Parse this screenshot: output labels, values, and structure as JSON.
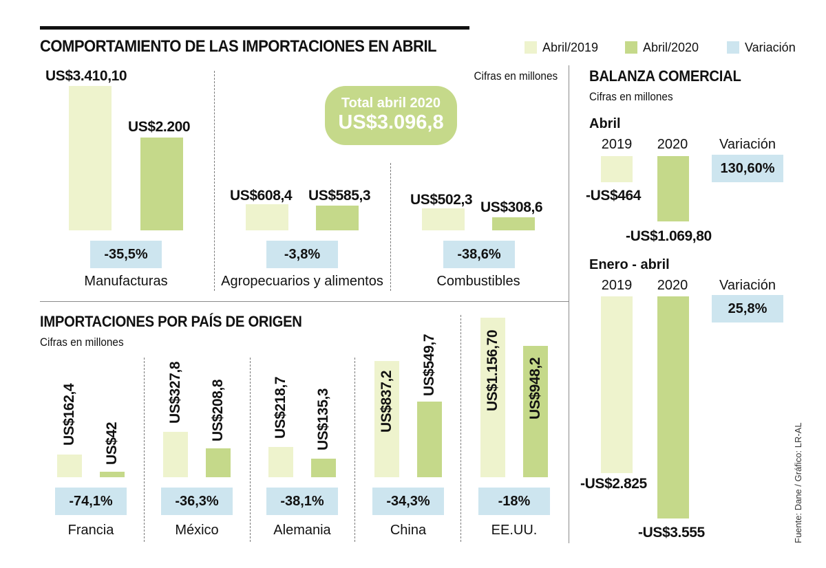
{
  "title": "COMPORTAMIENTO DE LAS IMPORTACIONES EN ABRIL",
  "legend": [
    {
      "label": "Abril/2019",
      "color": "#eef3cd"
    },
    {
      "label": "Abril/2020",
      "color": "#c5d98a"
    },
    {
      "label": "Variación",
      "color": "#cde5ef"
    }
  ],
  "units_note": "Cifras en millones",
  "total": {
    "line1": "Total abril 2020",
    "line2": "US$3.096,8"
  },
  "source": "Fuente: Dane / Gráfico: LR-AL",
  "chart_data": [
    {
      "type": "bar",
      "title": "COMPORTAMIENTO DE LAS IMPORTACIONES EN ABRIL",
      "categories": [
        "Manufacturas",
        "Agropecuarios y alimentos",
        "Combustibles"
      ],
      "series": [
        {
          "name": "Abril/2019",
          "values": [
            3410.1,
            608.4,
            502.3
          ],
          "labels": [
            "US$3.410,10",
            "US$608,4",
            "US$502,3"
          ]
        },
        {
          "name": "Abril/2020",
          "values": [
            2200,
            585.3,
            308.6
          ],
          "labels": [
            "US$2.200",
            "US$585,3",
            "US$308,6"
          ]
        }
      ],
      "variation": [
        "-35,5%",
        "-3,8%",
        "-38,6%"
      ]
    },
    {
      "type": "bar",
      "title": "IMPORTACIONES POR PAÍS DE ORIGEN",
      "subtitle": "Cifras en millones",
      "categories": [
        "Francia",
        "México",
        "Alemania",
        "China",
        "EE.UU."
      ],
      "series": [
        {
          "name": "Abril/2019",
          "values": [
            162.4,
            327.8,
            218.7,
            837.2,
            1156.7
          ],
          "labels": [
            "US$162,4",
            "US$327,8",
            "US$218,7",
            "US$837,2",
            "US$1.156,70"
          ]
        },
        {
          "name": "Abril/2020",
          "values": [
            42,
            208.8,
            135.3,
            549.7,
            948.2
          ],
          "labels": [
            "US$42",
            "US$208,8",
            "US$135,3",
            "US$549,7",
            "US$948,2"
          ]
        }
      ],
      "variation": [
        "-74,1%",
        "-36,3%",
        "-38,1%",
        "-34,3%",
        "-18%"
      ]
    },
    {
      "type": "bar",
      "title": "BALANZA COMERCIAL",
      "subtitle": "Cifras en millones",
      "groups": [
        {
          "name": "Abril",
          "categories": [
            "2019",
            "2020"
          ],
          "values": [
            -464,
            -1069.8
          ],
          "labels": [
            "-US$464",
            "-US$1.069,80"
          ],
          "variation_label": "Variación",
          "variation": "130,60%"
        },
        {
          "name": "Enero - abril",
          "categories": [
            "2019",
            "2020"
          ],
          "values": [
            -2825,
            -3555
          ],
          "labels": [
            "-US$2.825",
            "-US$3.555"
          ],
          "variation_label": "Variación",
          "variation": "25,8%"
        }
      ]
    }
  ]
}
